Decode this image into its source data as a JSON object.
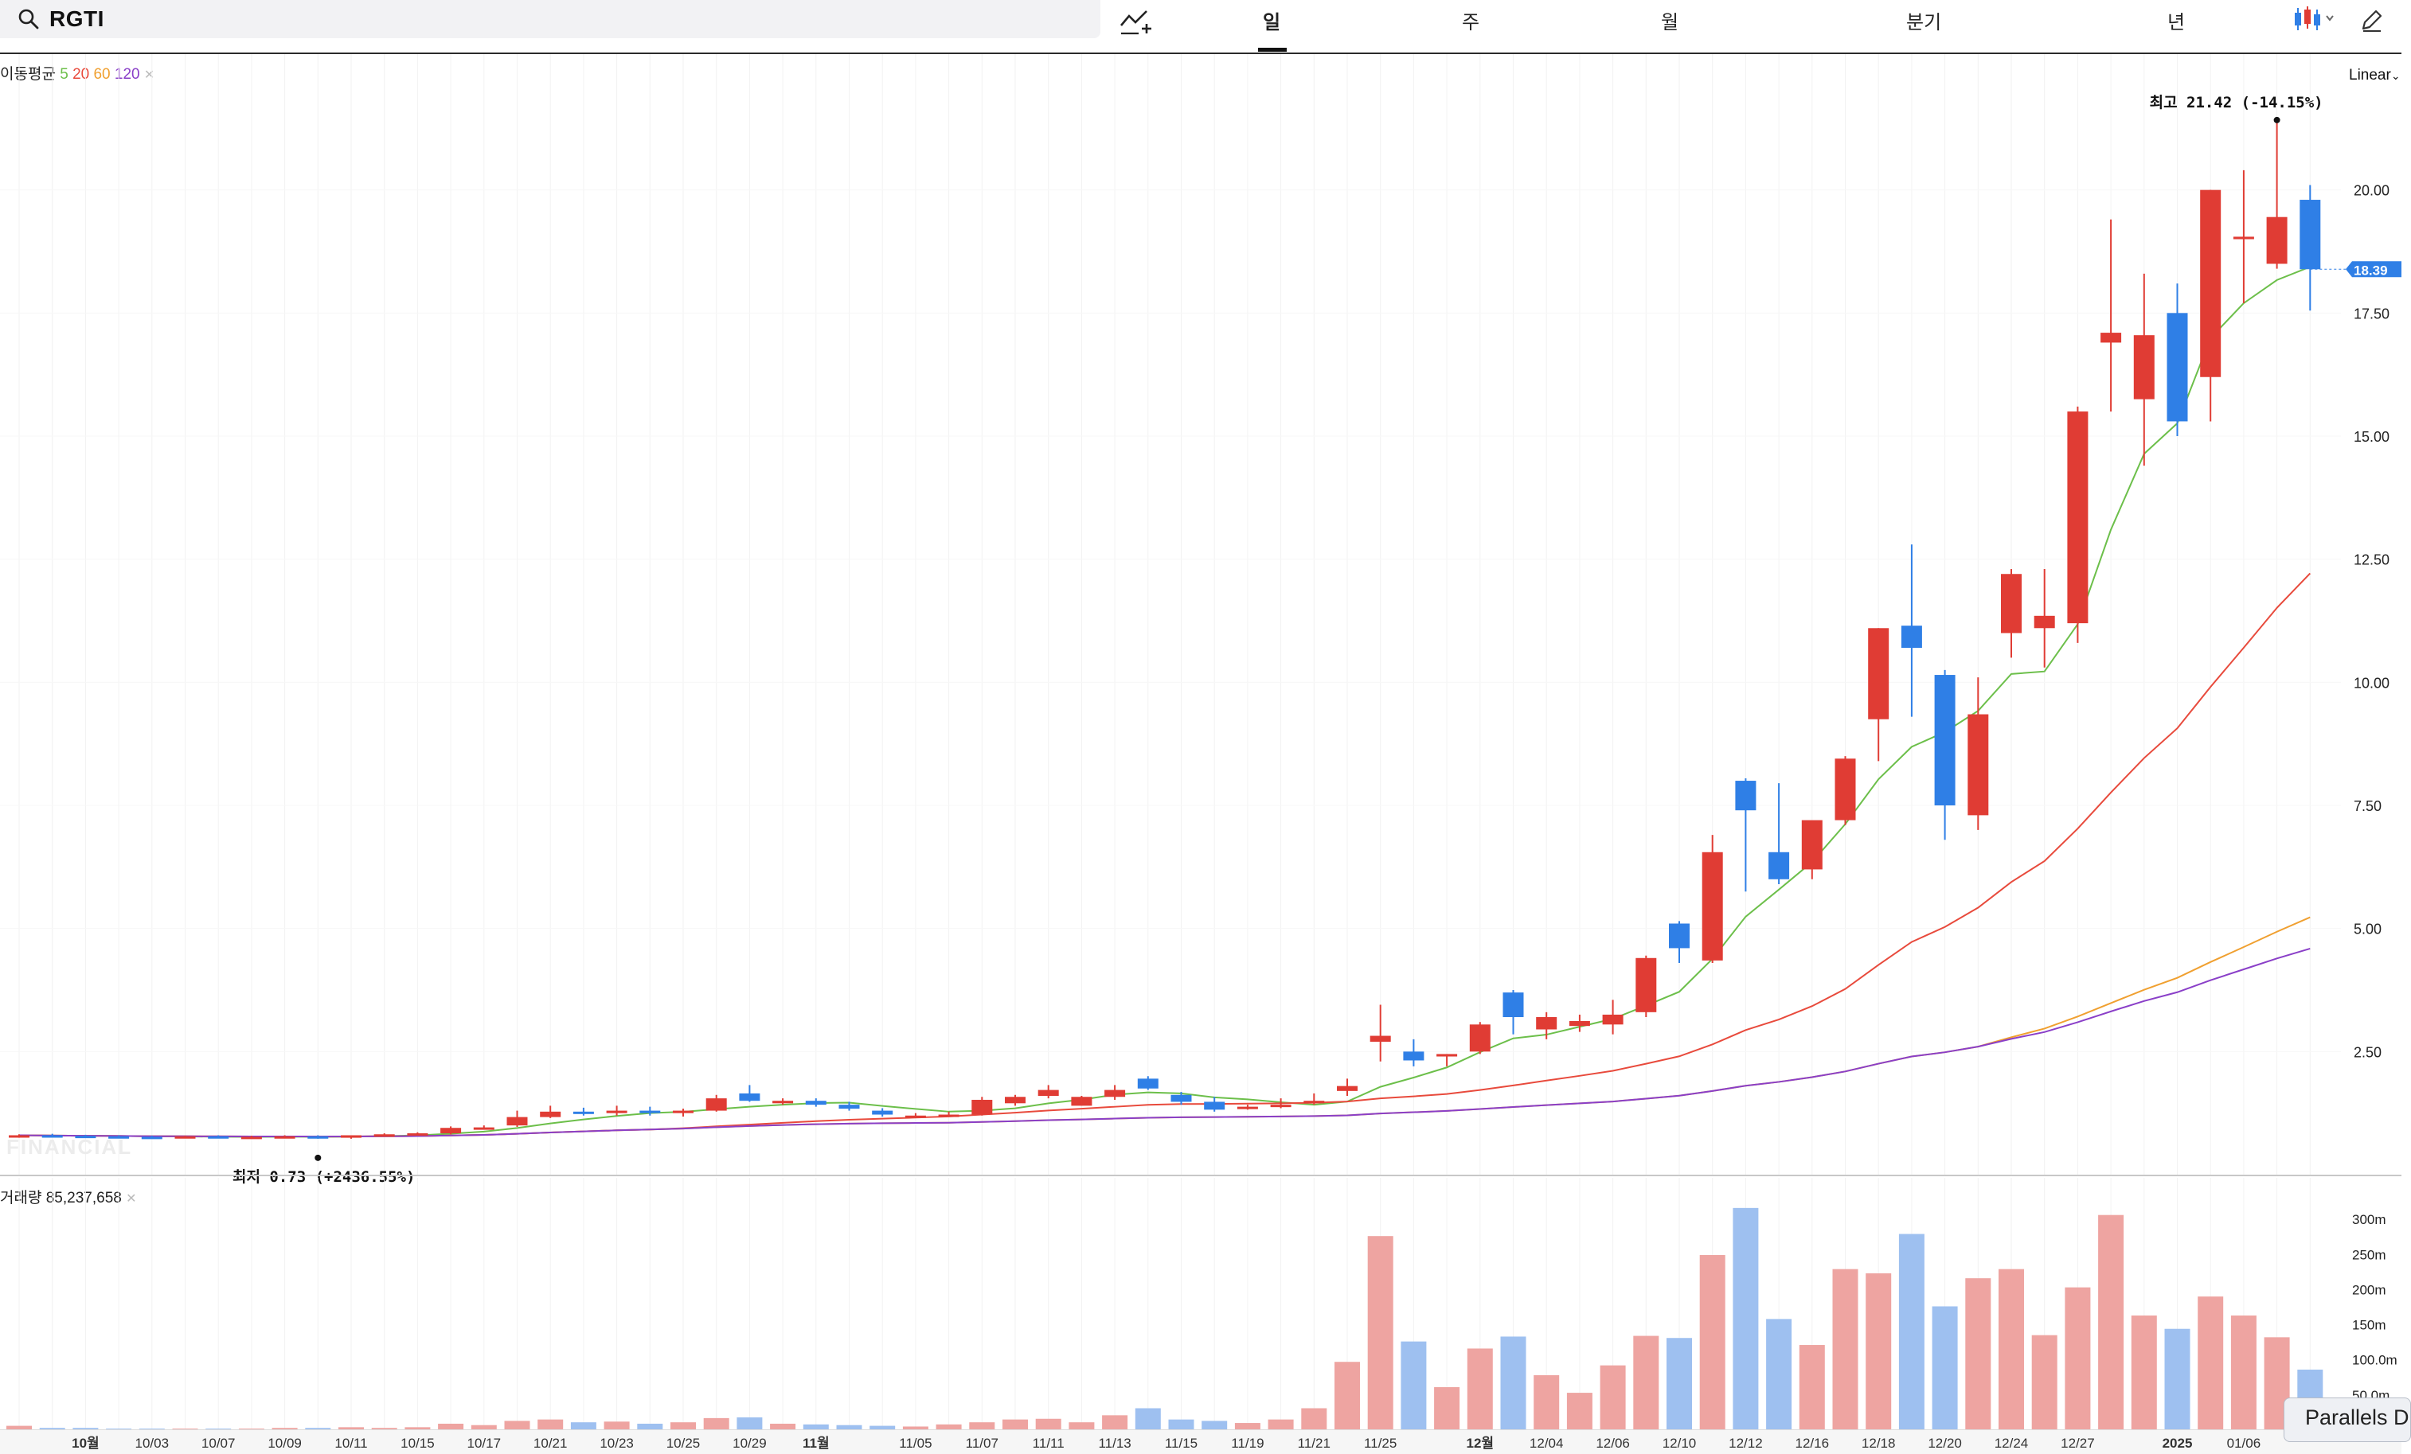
{
  "search": {
    "query": "RGTI"
  },
  "tabs": [
    "일",
    "주",
    "월",
    "분기",
    "년"
  ],
  "active_tab": "일",
  "moving_average": {
    "label": "이동평균",
    "periods": [
      "5",
      "20",
      "60",
      "120"
    ],
    "colors": [
      "#6cbf4a",
      "#e84a3c",
      "#f0a030",
      "#8a3fc8"
    ]
  },
  "scale_mode": "Linear",
  "watermark": "FINANCIAL",
  "high_marker": {
    "label": "최고",
    "value": "21.42",
    "change": "(-14.15%)"
  },
  "low_marker": {
    "label": "최저",
    "value": "0.73",
    "change": "(+2436.55%)"
  },
  "last_price_tag": "18.39",
  "volume": {
    "label": "거래량",
    "value": "85,237,658"
  },
  "parallels_tag": "Parallels D",
  "colors": {
    "up": "#e03c34",
    "down": "#2f7fe6",
    "vol_up": "#eea4a1",
    "vol_down": "#9ec0f0"
  },
  "chart_data": {
    "type": "candlestick",
    "price_axis": {
      "min": 0,
      "max": 22.5,
      "ticks": [
        "2.50",
        "5.00",
        "7.50",
        "10.00",
        "12.50",
        "15.00",
        "17.50",
        "20.00"
      ]
    },
    "volume_axis": {
      "unit": "m",
      "ticks": [
        "50.0m",
        "100.0m",
        "150m",
        "200m",
        "250m",
        "300m"
      ]
    },
    "x_labels": [
      {
        "i": 2,
        "t": "10월",
        "b": true
      },
      {
        "i": 4,
        "t": "10/03"
      },
      {
        "i": 6,
        "t": "10/07"
      },
      {
        "i": 8,
        "t": "10/09"
      },
      {
        "i": 10,
        "t": "10/11"
      },
      {
        "i": 12,
        "t": "10/15"
      },
      {
        "i": 14,
        "t": "10/17"
      },
      {
        "i": 16,
        "t": "10/21"
      },
      {
        "i": 18,
        "t": "10/23"
      },
      {
        "i": 20,
        "t": "10/25"
      },
      {
        "i": 22,
        "t": "10/29"
      },
      {
        "i": 24,
        "t": "11월",
        "b": true
      },
      {
        "i": 27,
        "t": "11/05"
      },
      {
        "i": 29,
        "t": "11/07"
      },
      {
        "i": 31,
        "t": "11/11"
      },
      {
        "i": 33,
        "t": "11/13"
      },
      {
        "i": 35,
        "t": "11/15"
      },
      {
        "i": 37,
        "t": "11/19"
      },
      {
        "i": 39,
        "t": "11/21"
      },
      {
        "i": 41,
        "t": "11/25"
      },
      {
        "i": 44,
        "t": "12월",
        "b": true
      },
      {
        "i": 46,
        "t": "12/04"
      },
      {
        "i": 48,
        "t": "12/06"
      },
      {
        "i": 50,
        "t": "12/10"
      },
      {
        "i": 52,
        "t": "12/12"
      },
      {
        "i": 54,
        "t": "12/16"
      },
      {
        "i": 56,
        "t": "12/18"
      },
      {
        "i": 58,
        "t": "12/20"
      },
      {
        "i": 60,
        "t": "12/24"
      },
      {
        "i": 62,
        "t": "12/27"
      },
      {
        "i": 65,
        "t": "2025",
        "b": true
      },
      {
        "i": 67,
        "t": "01/06"
      }
    ],
    "candles": [
      {
        "o": 0.78,
        "h": 0.82,
        "l": 0.75,
        "c": 0.8,
        "v": 5
      },
      {
        "o": 0.8,
        "h": 0.83,
        "l": 0.77,
        "c": 0.79,
        "v": 2
      },
      {
        "o": 0.79,
        "h": 0.81,
        "l": 0.76,
        "c": 0.78,
        "v": 2
      },
      {
        "o": 0.78,
        "h": 0.8,
        "l": 0.75,
        "c": 0.77,
        "v": 1
      },
      {
        "o": 0.77,
        "h": 0.79,
        "l": 0.74,
        "c": 0.76,
        "v": 1
      },
      {
        "o": 0.76,
        "h": 0.79,
        "l": 0.75,
        "c": 0.78,
        "v": 1
      },
      {
        "o": 0.78,
        "h": 0.8,
        "l": 0.75,
        "c": 0.76,
        "v": 1
      },
      {
        "o": 0.76,
        "h": 0.79,
        "l": 0.74,
        "c": 0.77,
        "v": 1
      },
      {
        "o": 0.76,
        "h": 0.8,
        "l": 0.74,
        "c": 0.78,
        "v": 2
      },
      {
        "o": 0.78,
        "h": 0.8,
        "l": 0.73,
        "c": 0.75,
        "v": 2
      },
      {
        "o": 0.75,
        "h": 0.8,
        "l": 0.73,
        "c": 0.8,
        "v": 3
      },
      {
        "o": 0.8,
        "h": 0.84,
        "l": 0.78,
        "c": 0.82,
        "v": 2
      },
      {
        "o": 0.82,
        "h": 0.86,
        "l": 0.8,
        "c": 0.84,
        "v": 3
      },
      {
        "o": 0.84,
        "h": 0.98,
        "l": 0.82,
        "c": 0.95,
        "v": 8
      },
      {
        "o": 0.95,
        "h": 1.0,
        "l": 0.92,
        "c": 0.96,
        "v": 6
      },
      {
        "o": 1.0,
        "h": 1.3,
        "l": 0.97,
        "c": 1.17,
        "v": 12
      },
      {
        "o": 1.17,
        "h": 1.4,
        "l": 1.15,
        "c": 1.28,
        "v": 14
      },
      {
        "o": 1.28,
        "h": 1.36,
        "l": 1.2,
        "c": 1.25,
        "v": 10
      },
      {
        "o": 1.25,
        "h": 1.4,
        "l": 1.2,
        "c": 1.3,
        "v": 11
      },
      {
        "o": 1.3,
        "h": 1.38,
        "l": 1.2,
        "c": 1.25,
        "v": 8
      },
      {
        "o": 1.25,
        "h": 1.34,
        "l": 1.18,
        "c": 1.3,
        "v": 10
      },
      {
        "o": 1.3,
        "h": 1.62,
        "l": 1.28,
        "c": 1.55,
        "v": 16
      },
      {
        "o": 1.65,
        "h": 1.82,
        "l": 1.48,
        "c": 1.5,
        "v": 17
      },
      {
        "o": 1.45,
        "h": 1.55,
        "l": 1.42,
        "c": 1.5,
        "v": 8
      },
      {
        "o": 1.5,
        "h": 1.55,
        "l": 1.38,
        "c": 1.42,
        "v": 7
      },
      {
        "o": 1.42,
        "h": 1.48,
        "l": 1.3,
        "c": 1.34,
        "v": 6
      },
      {
        "o": 1.3,
        "h": 1.35,
        "l": 1.18,
        "c": 1.22,
        "v": 5
      },
      {
        "o": 1.2,
        "h": 1.25,
        "l": 1.15,
        "c": 1.2,
        "v": 4
      },
      {
        "o": 1.2,
        "h": 1.28,
        "l": 1.18,
        "c": 1.22,
        "v": 7
      },
      {
        "o": 1.22,
        "h": 1.58,
        "l": 1.2,
        "c": 1.52,
        "v": 10
      },
      {
        "o": 1.45,
        "h": 1.62,
        "l": 1.4,
        "c": 1.58,
        "v": 14
      },
      {
        "o": 1.6,
        "h": 1.82,
        "l": 1.55,
        "c": 1.72,
        "v": 15
      },
      {
        "o": 1.4,
        "h": 1.6,
        "l": 1.4,
        "c": 1.58,
        "v": 10
      },
      {
        "o": 1.58,
        "h": 1.82,
        "l": 1.52,
        "c": 1.72,
        "v": 20
      },
      {
        "o": 1.95,
        "h": 2.0,
        "l": 1.72,
        "c": 1.75,
        "v": 30
      },
      {
        "o": 1.62,
        "h": 1.68,
        "l": 1.42,
        "c": 1.48,
        "v": 14
      },
      {
        "o": 1.48,
        "h": 1.58,
        "l": 1.28,
        "c": 1.32,
        "v": 12
      },
      {
        "o": 1.35,
        "h": 1.42,
        "l": 1.32,
        "c": 1.38,
        "v": 9
      },
      {
        "o": 1.4,
        "h": 1.55,
        "l": 1.35,
        "c": 1.42,
        "v": 14
      },
      {
        "o": 1.45,
        "h": 1.65,
        "l": 1.42,
        "c": 1.5,
        "v": 30
      },
      {
        "o": 1.7,
        "h": 1.95,
        "l": 1.6,
        "c": 1.8,
        "v": 96
      },
      {
        "o": 2.7,
        "h": 3.45,
        "l": 2.3,
        "c": 2.82,
        "v": 275
      },
      {
        "o": 2.5,
        "h": 2.75,
        "l": 2.2,
        "c": 2.32,
        "v": 125
      },
      {
        "o": 2.4,
        "h": 2.45,
        "l": 2.2,
        "c": 2.45,
        "v": 60
      },
      {
        "o": 2.5,
        "h": 3.1,
        "l": 2.45,
        "c": 3.05,
        "v": 115
      },
      {
        "o": 3.7,
        "h": 3.75,
        "l": 2.85,
        "c": 3.2,
        "v": 132
      },
      {
        "o": 2.95,
        "h": 3.3,
        "l": 2.75,
        "c": 3.2,
        "v": 77
      },
      {
        "o": 3.02,
        "h": 3.25,
        "l": 2.9,
        "c": 3.12,
        "v": 52
      },
      {
        "o": 3.05,
        "h": 3.55,
        "l": 2.85,
        "c": 3.25,
        "v": 91
      },
      {
        "o": 3.3,
        "h": 4.45,
        "l": 3.2,
        "c": 4.4,
        "v": 133
      },
      {
        "o": 5.1,
        "h": 5.15,
        "l": 4.3,
        "c": 4.6,
        "v": 130
      },
      {
        "o": 4.35,
        "h": 6.9,
        "l": 4.3,
        "c": 6.55,
        "v": 248
      },
      {
        "o": 8.0,
        "h": 8.05,
        "l": 5.75,
        "c": 7.4,
        "v": 315
      },
      {
        "o": 6.55,
        "h": 7.95,
        "l": 5.9,
        "c": 6.0,
        "v": 157
      },
      {
        "o": 6.2,
        "h": 7.15,
        "l": 6.0,
        "c": 7.2,
        "v": 120
      },
      {
        "o": 7.2,
        "h": 8.5,
        "l": 7.1,
        "c": 8.45,
        "v": 228
      },
      {
        "o": 9.25,
        "h": 11.1,
        "l": 8.4,
        "c": 11.1,
        "v": 222
      },
      {
        "o": 11.15,
        "h": 12.8,
        "l": 9.3,
        "c": 10.7,
        "v": 278
      },
      {
        "o": 10.15,
        "h": 10.25,
        "l": 6.8,
        "c": 7.5,
        "v": 175
      },
      {
        "o": 7.3,
        "h": 10.1,
        "l": 7.0,
        "c": 9.35,
        "v": 215
      },
      {
        "o": 11.0,
        "h": 12.3,
        "l": 10.5,
        "c": 12.2,
        "v": 228
      },
      {
        "o": 11.1,
        "h": 12.3,
        "l": 10.3,
        "c": 11.35,
        "v": 134
      },
      {
        "o": 11.2,
        "h": 15.6,
        "l": 10.8,
        "c": 15.5,
        "v": 202
      },
      {
        "o": 16.9,
        "h": 19.4,
        "l": 15.5,
        "c": 17.1,
        "v": 305
      },
      {
        "o": 15.75,
        "h": 18.3,
        "l": 14.4,
        "c": 17.05,
        "v": 162
      },
      {
        "o": 17.5,
        "h": 18.1,
        "l": 15.0,
        "c": 15.3,
        "v": 143
      },
      {
        "o": 16.2,
        "h": 20.0,
        "l": 15.3,
        "c": 20.0,
        "v": 189
      },
      {
        "o": 19.0,
        "h": 20.4,
        "l": 17.7,
        "c": 19.05,
        "v": 162
      },
      {
        "o": 18.5,
        "h": 21.42,
        "l": 18.4,
        "c": 19.45,
        "v": 131
      },
      {
        "o": 19.8,
        "h": 20.1,
        "l": 17.55,
        "c": 18.39,
        "v": 85
      }
    ]
  }
}
